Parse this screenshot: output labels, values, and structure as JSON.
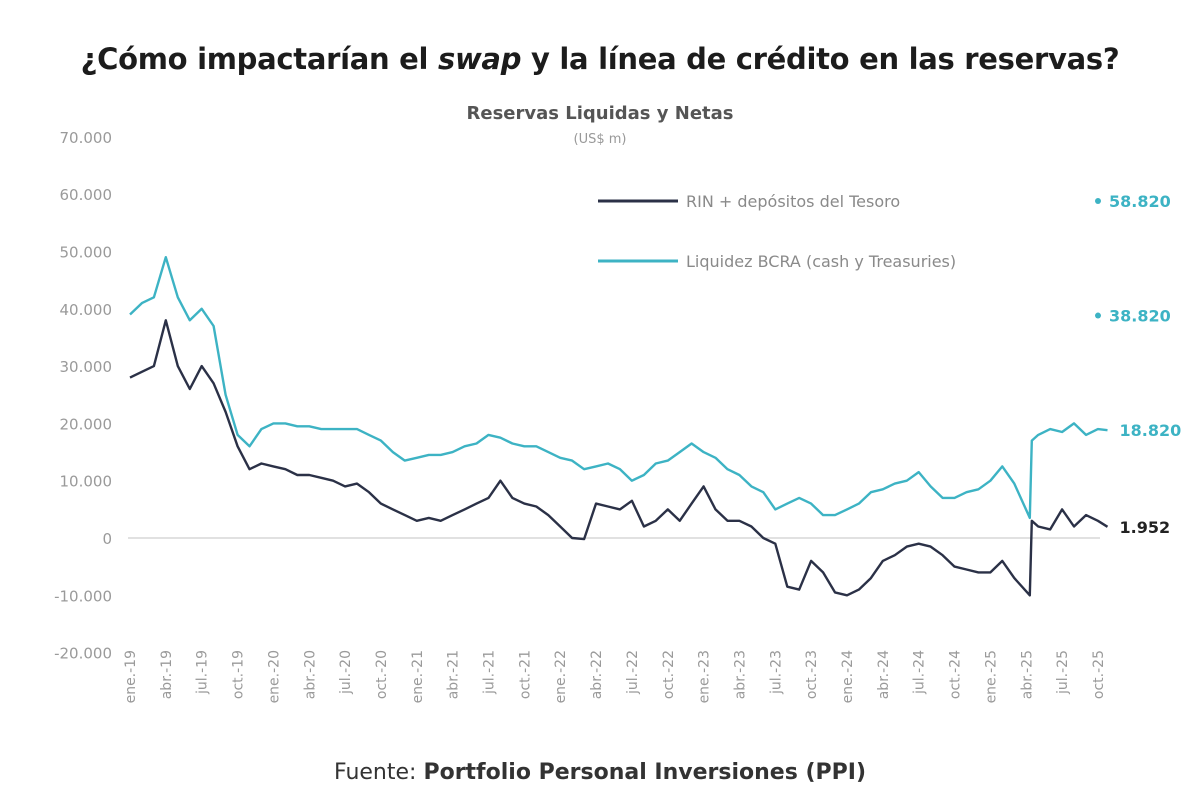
{
  "title": {
    "before": "¿Cómo impactarían el ",
    "italic": "swap",
    "after": " y la línea de crédito en las reservas?"
  },
  "source": {
    "prefix": "Fuente: ",
    "name": "Portfolio Personal Inversiones (PPI)"
  },
  "colors": {
    "rin": "#2b3147",
    "liquidez": "#3db3c4",
    "zero_line": "#cfcfcf"
  },
  "chart_data": {
    "type": "line",
    "title": "Reservas Liquidas y Netas",
    "subtitle": "(US$ m)",
    "ylim": [
      -20000,
      70000
    ],
    "yticks": [
      70000,
      60000,
      50000,
      40000,
      30000,
      20000,
      10000,
      0,
      -10000,
      -20000
    ],
    "ytick_labels": [
      "70.000",
      "60.000",
      "50.000",
      "40.000",
      "30.000",
      "20.000",
      "10.000",
      "0",
      "-10.000",
      "-20.000"
    ],
    "xtick_dates": [
      "2019-01",
      "2019-04",
      "2019-07",
      "2019-10",
      "2020-01",
      "2020-04",
      "2020-07",
      "2020-10",
      "2021-01",
      "2021-04",
      "2021-07",
      "2021-10",
      "2022-01",
      "2022-04",
      "2022-07",
      "2022-10",
      "2023-01",
      "2023-04",
      "2023-07",
      "2023-10",
      "2024-01",
      "2024-04",
      "2024-07",
      "2024-10",
      "2025-01",
      "2025-04",
      "2025-07",
      "2025-10"
    ],
    "xtick_labels": [
      "ene.-19",
      "abr.-19",
      "jul.-19",
      "oct.-19",
      "ene.-20",
      "abr.-20",
      "jul.-20",
      "oct.-20",
      "ene.-21",
      "abr.-21",
      "jul.-21",
      "oct.-21",
      "ene.-22",
      "abr.-22",
      "jul.-22",
      "oct.-22",
      "ene.-23",
      "abr.-23",
      "jul.-23",
      "oct.-23",
      "ene.-24",
      "abr.-24",
      "jul.-24",
      "oct.-24",
      "ene.-25",
      "abr.-25",
      "jul.-25",
      "oct.-25"
    ],
    "grid": false,
    "legend_position": "top-right",
    "series": [
      {
        "name": "RIN + depósitos del Tesoro",
        "color_key": "rin",
        "x": [
          "2019-01",
          "2019-02",
          "2019-03",
          "2019-04",
          "2019-05",
          "2019-06",
          "2019-07",
          "2019-08",
          "2019-09",
          "2019-10",
          "2019-11",
          "2019-12",
          "2020-01",
          "2020-02",
          "2020-03",
          "2020-04",
          "2020-05",
          "2020-06",
          "2020-07",
          "2020-08",
          "2020-09",
          "2020-10",
          "2020-11",
          "2020-12",
          "2021-01",
          "2021-02",
          "2021-03",
          "2021-04",
          "2021-05",
          "2021-06",
          "2021-07",
          "2021-08",
          "2021-09",
          "2021-10",
          "2021-11",
          "2021-12",
          "2022-01",
          "2022-02",
          "2022-03",
          "2022-04",
          "2022-05",
          "2022-06",
          "2022-07",
          "2022-08",
          "2022-09",
          "2022-10",
          "2022-11",
          "2022-12",
          "2023-01",
          "2023-02",
          "2023-03",
          "2023-04",
          "2023-05",
          "2023-06",
          "2023-07",
          "2023-08",
          "2023-09",
          "2023-10",
          "2023-11",
          "2023-12",
          "2024-01",
          "2024-02",
          "2024-03",
          "2024-04",
          "2024-05",
          "2024-06",
          "2024-07",
          "2024-08",
          "2024-09",
          "2024-10",
          "2024-11",
          "2024-12",
          "2025-01",
          "2025-02",
          "2025-03",
          "2025-04-10",
          "2025-04-15",
          "2025-05",
          "2025-06",
          "2025-07",
          "2025-08",
          "2025-09",
          "2025-10",
          "2025-10-25"
        ],
        "y": [
          28000,
          29000,
          30000,
          38000,
          30000,
          26000,
          30000,
          27000,
          22000,
          16000,
          12000,
          13000,
          12500,
          12000,
          11000,
          11000,
          10500,
          10000,
          9000,
          9500,
          8000,
          6000,
          5000,
          4000,
          3000,
          3500,
          3000,
          4000,
          5000,
          6000,
          7000,
          10000,
          7000,
          6000,
          5500,
          4000,
          2000,
          0,
          -200,
          6000,
          5500,
          5000,
          6500,
          2000,
          3000,
          5000,
          3000,
          6000,
          9000,
          5000,
          3000,
          3000,
          2000,
          0,
          -1000,
          -8500,
          -9000,
          -4000,
          -6000,
          -9500,
          -10000,
          -9000,
          -7000,
          -4000,
          -3000,
          -1500,
          -1000,
          -1500,
          -3000,
          -5000,
          -5500,
          -6000,
          -6000,
          -4000,
          -7000,
          -10000,
          3000,
          2000,
          1500,
          5000,
          2000,
          4000,
          3000,
          1952
        ],
        "end_label": "1.952"
      },
      {
        "name": "Liquidez BCRA (cash y Treasuries)",
        "color_key": "liquidez",
        "x": [
          "2019-01",
          "2019-02",
          "2019-03",
          "2019-04",
          "2019-05",
          "2019-06",
          "2019-07",
          "2019-08",
          "2019-09",
          "2019-10",
          "2019-11",
          "2019-12",
          "2020-01",
          "2020-02",
          "2020-03",
          "2020-04",
          "2020-05",
          "2020-06",
          "2020-07",
          "2020-08",
          "2020-09",
          "2020-10",
          "2020-11",
          "2020-12",
          "2021-01",
          "2021-02",
          "2021-03",
          "2021-04",
          "2021-05",
          "2021-06",
          "2021-07",
          "2021-08",
          "2021-09",
          "2021-10",
          "2021-11",
          "2021-12",
          "2022-01",
          "2022-02",
          "2022-03",
          "2022-04",
          "2022-05",
          "2022-06",
          "2022-07",
          "2022-08",
          "2022-09",
          "2022-10",
          "2022-11",
          "2022-12",
          "2023-01",
          "2023-02",
          "2023-03",
          "2023-04",
          "2023-05",
          "2023-06",
          "2023-07",
          "2023-08",
          "2023-09",
          "2023-10",
          "2023-11",
          "2023-12",
          "2024-01",
          "2024-02",
          "2024-03",
          "2024-04",
          "2024-05",
          "2024-06",
          "2024-07",
          "2024-08",
          "2024-09",
          "2024-10",
          "2024-11",
          "2024-12",
          "2025-01",
          "2025-02",
          "2025-03",
          "2025-04-10",
          "2025-04-15",
          "2025-05",
          "2025-06",
          "2025-07",
          "2025-08",
          "2025-09",
          "2025-10",
          "2025-10-25"
        ],
        "y": [
          39000,
          41000,
          42000,
          49000,
          42000,
          38000,
          40000,
          37000,
          25000,
          18000,
          16000,
          19000,
          20000,
          20000,
          19500,
          19500,
          19000,
          19000,
          19000,
          19000,
          18000,
          17000,
          15000,
          13500,
          14000,
          14500,
          14500,
          15000,
          16000,
          16500,
          18000,
          17500,
          16500,
          16000,
          16000,
          15000,
          14000,
          13500,
          12000,
          12500,
          13000,
          12000,
          10000,
          11000,
          13000,
          13500,
          15000,
          16500,
          15000,
          14000,
          12000,
          11000,
          9000,
          8000,
          5000,
          6000,
          7000,
          6000,
          4000,
          4000,
          5000,
          6000,
          8000,
          8500,
          9500,
          10000,
          11500,
          9000,
          7000,
          7000,
          8000,
          8500,
          10000,
          12500,
          9500,
          3500,
          17000,
          18000,
          19000,
          18500,
          20000,
          18000,
          19000,
          18820
        ],
        "end_label": "18.820"
      }
    ],
    "annotations": [
      {
        "label": "58.820",
        "y": 58820,
        "marker": true
      },
      {
        "label": "38.820",
        "y": 38820,
        "marker": true
      }
    ]
  }
}
